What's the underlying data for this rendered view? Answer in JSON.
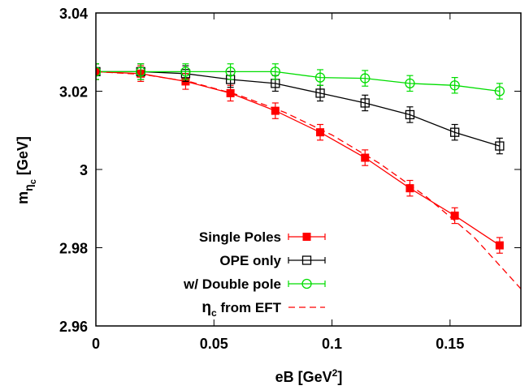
{
  "chart_data": {
    "type": "scatter",
    "xlabel": {
      "main": "eB [GeV",
      "sup": "2",
      "tail": "]"
    },
    "ylabel": {
      "main": "m",
      "sub1": "η",
      "sub2": "c",
      "tail": " [GeV]"
    },
    "xlim": [
      0,
      0.18
    ],
    "ylim": [
      2.96,
      3.04
    ],
    "xticks": [
      {
        "value": 0,
        "label": "0"
      },
      {
        "value": 0.05,
        "label": "0.05"
      },
      {
        "value": 0.1,
        "label": "0.1"
      },
      {
        "value": 0.15,
        "label": "0.15"
      }
    ],
    "yticks": [
      {
        "value": 2.96,
        "label": "2.96"
      },
      {
        "value": 2.98,
        "label": "2.98"
      },
      {
        "value": 3.0,
        "label": "3"
      },
      {
        "value": 3.02,
        "label": "3.02"
      },
      {
        "value": 3.04,
        "label": "3.04"
      }
    ],
    "legend_position": "bottom-left",
    "grid": false,
    "series": [
      {
        "name": "Single Poles",
        "color": "#ff0000",
        "marker": "filled-square",
        "connect": true,
        "x": [
          0.0,
          0.019,
          0.038,
          0.057,
          0.076,
          0.095,
          0.114,
          0.133,
          0.152,
          0.171
        ],
        "y": [
          3.025,
          3.0245,
          3.0225,
          3.0195,
          3.015,
          3.0095,
          3.003,
          2.9952,
          2.9882,
          2.9806
        ],
        "err": [
          0.002,
          0.002,
          0.002,
          0.002,
          0.002,
          0.002,
          0.002,
          0.002,
          0.002,
          0.002
        ]
      },
      {
        "name": "OPE only",
        "color": "#000000",
        "marker": "open-square",
        "connect": true,
        "x": [
          0.0,
          0.019,
          0.038,
          0.057,
          0.076,
          0.095,
          0.114,
          0.133,
          0.152,
          0.171
        ],
        "y": [
          3.025,
          3.025,
          3.0245,
          3.023,
          3.022,
          3.0195,
          3.017,
          3.014,
          3.0095,
          3.006
        ],
        "err": [
          0.002,
          0.002,
          0.002,
          0.002,
          0.002,
          0.002,
          0.002,
          0.002,
          0.002,
          0.002
        ]
      },
      {
        "name": "w/ Double pole",
        "color": "#00dd00",
        "marker": "open-circle",
        "connect": true,
        "x": [
          0.0,
          0.019,
          0.038,
          0.057,
          0.076,
          0.095,
          0.114,
          0.133,
          0.152,
          0.171
        ],
        "y": [
          3.025,
          3.025,
          3.025,
          3.025,
          3.025,
          3.0235,
          3.0233,
          3.022,
          3.0215,
          3.02
        ],
        "err": [
          0.002,
          0.002,
          0.002,
          0.002,
          0.002,
          0.002,
          0.002,
          0.002,
          0.002,
          0.002
        ]
      },
      {
        "name_main": "η",
        "name_sub": "c",
        "name_tail": " from EFT",
        "color": "#ff0000",
        "marker": "none",
        "dashed": true,
        "x": [
          0.0,
          0.02,
          0.04,
          0.06,
          0.08,
          0.1,
          0.12,
          0.14,
          0.16,
          0.18
        ],
        "y": [
          3.025,
          3.0243,
          3.0224,
          3.0191,
          3.0146,
          3.0088,
          3.0016,
          2.993,
          2.9828,
          2.9695
        ]
      }
    ]
  }
}
